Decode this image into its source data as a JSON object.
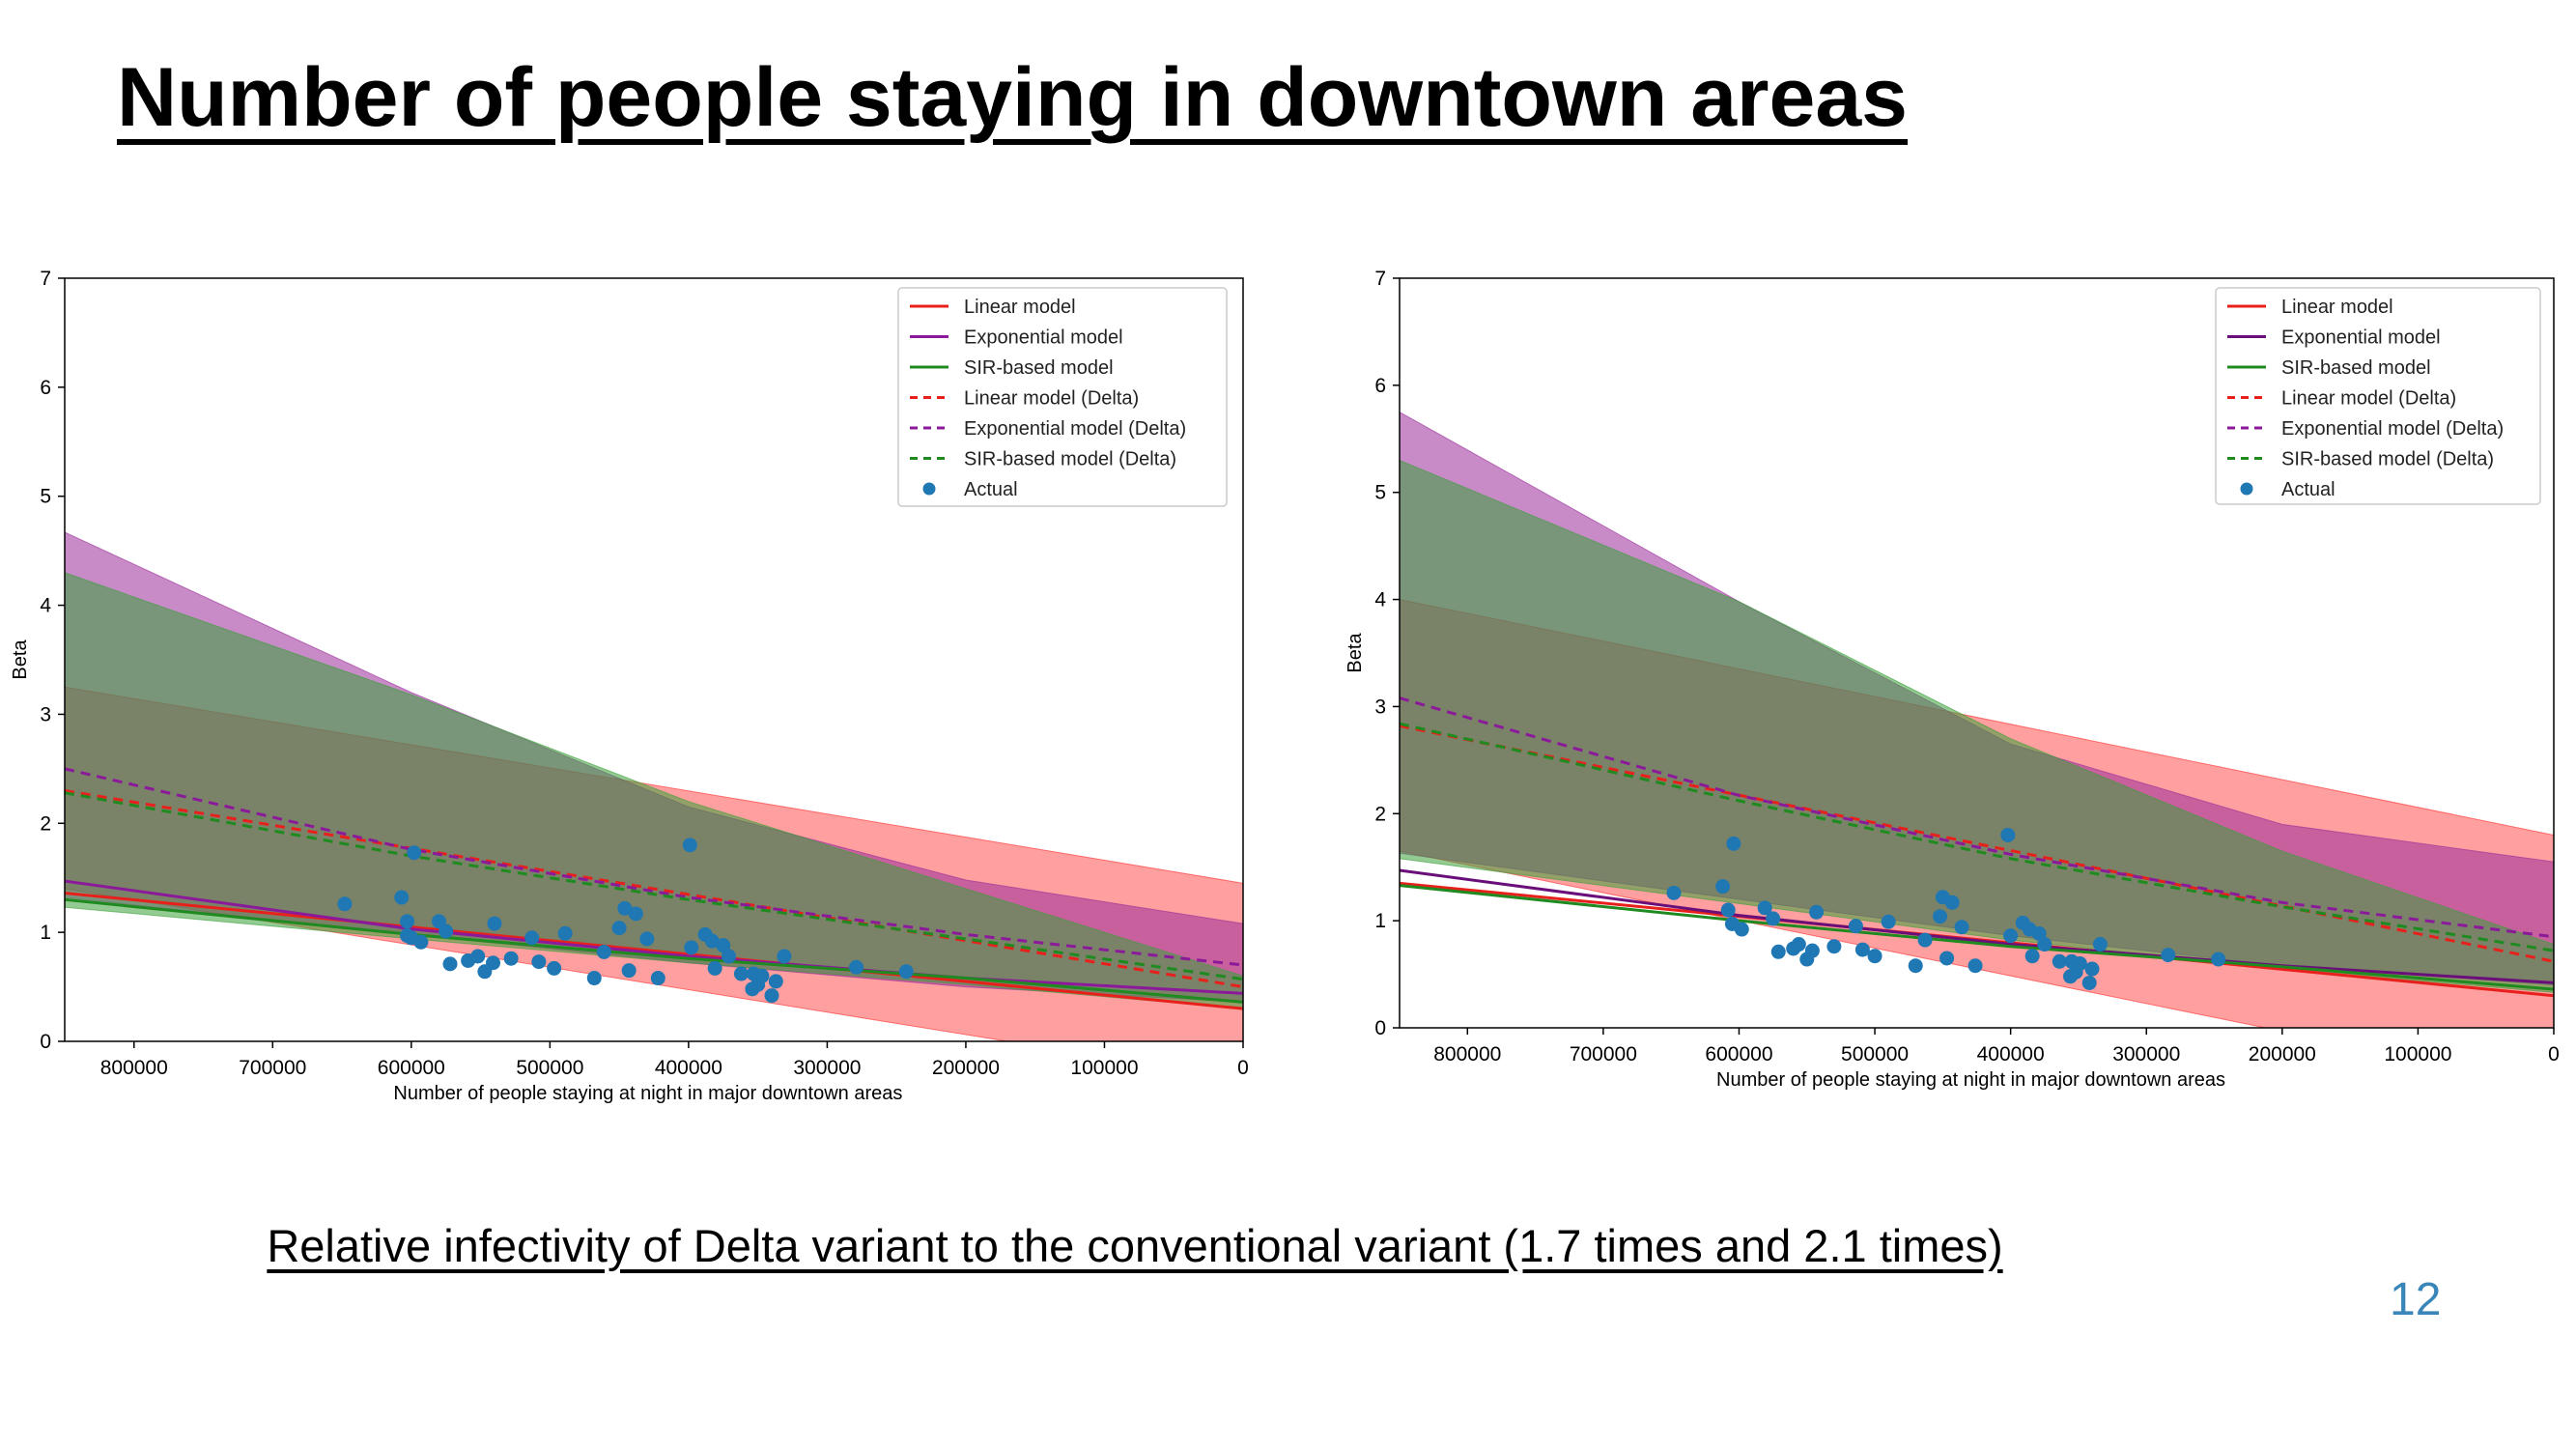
{
  "slide": {
    "title": "Number of people staying in downtown areas",
    "caption": "Relative infectivity of Delta variant to the conventional variant (1.7 times and 2.1 times)",
    "page_number": "12"
  },
  "chart_data": [
    {
      "type": "line",
      "title": "",
      "xlabel": "Number of people staying at night in major downtown areas",
      "ylabel": "Beta",
      "xlim": [
        850000,
        0
      ],
      "ylim": [
        0,
        7
      ],
      "x_inverted": true,
      "xticks": [
        800000,
        700000,
        600000,
        500000,
        400000,
        300000,
        200000,
        100000,
        0
      ],
      "yticks": [
        0,
        1,
        2,
        3,
        4,
        5,
        6,
        7
      ],
      "grid": false,
      "legend_position": "top-right",
      "series": [
        {
          "name": "Linear model",
          "style": "solid",
          "color": "#e8201c",
          "x": [
            850000,
            0
          ],
          "y": [
            1.36,
            0.3
          ]
        },
        {
          "name": "Exponential model",
          "style": "solid",
          "color": "#8b1a9b",
          "x": [
            850000,
            600000,
            400000,
            200000,
            0
          ],
          "y": [
            1.47,
            1.03,
            0.78,
            0.58,
            0.44
          ]
        },
        {
          "name": "SIR-based model",
          "style": "solid",
          "color": "#1f8a1f",
          "x": [
            850000,
            600000,
            400000,
            200000,
            0
          ],
          "y": [
            1.3,
            0.98,
            0.76,
            0.58,
            0.36
          ]
        },
        {
          "name": "Linear model (Delta)",
          "style": "dashed",
          "color": "#e8201c",
          "x": [
            850000,
            0
          ],
          "y": [
            2.3,
            0.5
          ]
        },
        {
          "name": "Exponential model (Delta)",
          "style": "dashed",
          "color": "#8b1a9b",
          "x": [
            850000,
            600000,
            400000,
            200000,
            0
          ],
          "y": [
            2.5,
            1.76,
            1.32,
            0.98,
            0.7
          ]
        },
        {
          "name": "SIR-based model (Delta)",
          "style": "dashed",
          "color": "#1f8a1f",
          "x": [
            850000,
            600000,
            400000,
            200000,
            0
          ],
          "y": [
            2.28,
            1.7,
            1.3,
            0.94,
            0.57
          ]
        }
      ],
      "bands": [
        {
          "series": "Linear model (Delta)",
          "color": "#ff2a2a",
          "opacity": 0.45,
          "x": [
            850000,
            0
          ],
          "lower": [
            1.4,
            -0.35
          ],
          "upper": [
            3.25,
            1.45
          ]
        },
        {
          "series": "Exponential model (Delta)",
          "color": "#9a2b9a",
          "opacity": 0.55,
          "x": [
            850000,
            600000,
            400000,
            200000,
            0
          ],
          "lower": [
            1.32,
            0.98,
            0.72,
            0.5,
            0.36
          ],
          "upper": [
            4.67,
            3.2,
            2.15,
            1.48,
            1.08
          ]
        },
        {
          "series": "SIR-based model (Delta)",
          "color": "#3aa03a",
          "opacity": 0.55,
          "x": [
            850000,
            600000,
            400000,
            200000,
            0
          ],
          "lower": [
            1.23,
            0.94,
            0.72,
            0.52,
            0.3
          ],
          "upper": [
            4.3,
            3.18,
            2.2,
            1.4,
            0.6
          ]
        }
      ],
      "scatter": {
        "name": "Actual",
        "color": "#1f77b4",
        "points": [
          [
            648000,
            1.26
          ],
          [
            607000,
            1.32
          ],
          [
            603000,
            1.1
          ],
          [
            603000,
            0.97
          ],
          [
            598000,
            1.73
          ],
          [
            600000,
            0.95
          ],
          [
            593000,
            0.91
          ],
          [
            580000,
            1.1
          ],
          [
            575000,
            1.01
          ],
          [
            572000,
            0.71
          ],
          [
            559000,
            0.74
          ],
          [
            552000,
            0.78
          ],
          [
            547000,
            0.64
          ],
          [
            541000,
            0.72
          ],
          [
            540000,
            1.08
          ],
          [
            528000,
            0.76
          ],
          [
            513000,
            0.95
          ],
          [
            508000,
            0.73
          ],
          [
            497000,
            0.67
          ],
          [
            489000,
            0.99
          ],
          [
            468000,
            0.58
          ],
          [
            461000,
            0.82
          ],
          [
            450000,
            1.04
          ],
          [
            446000,
            1.22
          ],
          [
            443000,
            0.65
          ],
          [
            438000,
            1.17
          ],
          [
            430000,
            0.94
          ],
          [
            422000,
            0.58
          ],
          [
            399000,
            1.8
          ],
          [
            398000,
            0.86
          ],
          [
            388000,
            0.98
          ],
          [
            383000,
            0.92
          ],
          [
            381000,
            0.67
          ],
          [
            375000,
            0.88
          ],
          [
            371000,
            0.78
          ],
          [
            362000,
            0.62
          ],
          [
            354000,
            0.48
          ],
          [
            353000,
            0.62
          ],
          [
            350000,
            0.52
          ],
          [
            347000,
            0.6
          ],
          [
            340000,
            0.42
          ],
          [
            337000,
            0.55
          ],
          [
            331000,
            0.78
          ],
          [
            279000,
            0.68
          ],
          [
            243000,
            0.64
          ]
        ]
      }
    },
    {
      "type": "line",
      "title": "",
      "xlabel": "Number of people staying at night in major downtown areas",
      "ylabel": "Beta",
      "xlim": [
        850000,
        0
      ],
      "ylim": [
        0,
        7
      ],
      "x_inverted": true,
      "xticks": [
        800000,
        700000,
        600000,
        500000,
        400000,
        300000,
        200000,
        100000,
        0
      ],
      "yticks": [
        0,
        1,
        2,
        3,
        4,
        5,
        6,
        7
      ],
      "grid": false,
      "legend_position": "top-right",
      "series": [
        {
          "name": "Linear model",
          "style": "solid",
          "color": "#e8201c",
          "x": [
            850000,
            0
          ],
          "y": [
            1.35,
            0.3
          ]
        },
        {
          "name": "Exponential model",
          "style": "solid",
          "color": "#6a0f7a",
          "x": [
            850000,
            600000,
            400000,
            200000,
            0
          ],
          "y": [
            1.47,
            1.05,
            0.78,
            0.58,
            0.42
          ]
        },
        {
          "name": "SIR-based model",
          "style": "solid",
          "color": "#1f8a1f",
          "x": [
            850000,
            600000,
            400000,
            200000,
            0
          ],
          "y": [
            1.33,
            1.0,
            0.76,
            0.57,
            0.36
          ]
        },
        {
          "name": "Linear model (Delta)",
          "style": "dashed",
          "color": "#e8201c",
          "x": [
            850000,
            0
          ],
          "y": [
            2.82,
            0.62
          ]
        },
        {
          "name": "Exponential model (Delta)",
          "style": "dashed",
          "color": "#8b1a9b",
          "x": [
            850000,
            600000,
            400000,
            200000,
            0
          ],
          "y": [
            3.08,
            2.17,
            1.62,
            1.17,
            0.85
          ]
        },
        {
          "name": "SIR-based model (Delta)",
          "style": "dashed",
          "color": "#1f8a1f",
          "x": [
            850000,
            600000,
            400000,
            200000,
            0
          ],
          "y": [
            2.84,
            2.12,
            1.58,
            1.13,
            0.72
          ]
        }
      ],
      "bands": [
        {
          "series": "Linear model (Delta)",
          "color": "#ff2a2a",
          "opacity": 0.45,
          "x": [
            850000,
            0
          ],
          "lower": [
            1.65,
            -0.55
          ],
          "upper": [
            4.0,
            1.8
          ]
        },
        {
          "series": "Exponential model (Delta)",
          "color": "#9a2b9a",
          "opacity": 0.55,
          "x": [
            850000,
            600000,
            400000,
            200000,
            0
          ],
          "lower": [
            1.63,
            1.2,
            0.86,
            0.58,
            0.4
          ],
          "upper": [
            5.75,
            3.98,
            2.65,
            1.9,
            1.55
          ]
        },
        {
          "series": "SIR-based model (Delta)",
          "color": "#3aa03a",
          "opacity": 0.55,
          "x": [
            850000,
            600000,
            400000,
            200000,
            0
          ],
          "lower": [
            1.58,
            1.16,
            0.82,
            0.55,
            0.33
          ],
          "upper": [
            5.3,
            3.98,
            2.7,
            1.65,
            0.78
          ]
        }
      ],
      "scatter": {
        "name": "Actual",
        "color": "#1f77b4",
        "points": [
          [
            648000,
            1.26
          ],
          [
            612000,
            1.32
          ],
          [
            608000,
            1.1
          ],
          [
            605000,
            0.97
          ],
          [
            604000,
            1.72
          ],
          [
            598000,
            0.92
          ],
          [
            581000,
            1.12
          ],
          [
            575000,
            1.02
          ],
          [
            571000,
            0.71
          ],
          [
            560000,
            0.74
          ],
          [
            556000,
            0.78
          ],
          [
            550000,
            0.64
          ],
          [
            546000,
            0.72
          ],
          [
            543000,
            1.08
          ],
          [
            530000,
            0.76
          ],
          [
            514000,
            0.95
          ],
          [
            509000,
            0.73
          ],
          [
            500000,
            0.67
          ],
          [
            490000,
            0.99
          ],
          [
            470000,
            0.58
          ],
          [
            463000,
            0.82
          ],
          [
            452000,
            1.04
          ],
          [
            450000,
            1.22
          ],
          [
            447000,
            0.65
          ],
          [
            443000,
            1.17
          ],
          [
            436000,
            0.94
          ],
          [
            426000,
            0.58
          ],
          [
            402000,
            1.8
          ],
          [
            400000,
            0.86
          ],
          [
            391000,
            0.98
          ],
          [
            386000,
            0.92
          ],
          [
            384000,
            0.67
          ],
          [
            379000,
            0.88
          ],
          [
            375000,
            0.78
          ],
          [
            364000,
            0.62
          ],
          [
            356000,
            0.48
          ],
          [
            355000,
            0.62
          ],
          [
            352000,
            0.52
          ],
          [
            349000,
            0.6
          ],
          [
            342000,
            0.42
          ],
          [
            340000,
            0.55
          ],
          [
            334000,
            0.78
          ],
          [
            284000,
            0.68
          ],
          [
            247000,
            0.64
          ]
        ]
      }
    }
  ]
}
